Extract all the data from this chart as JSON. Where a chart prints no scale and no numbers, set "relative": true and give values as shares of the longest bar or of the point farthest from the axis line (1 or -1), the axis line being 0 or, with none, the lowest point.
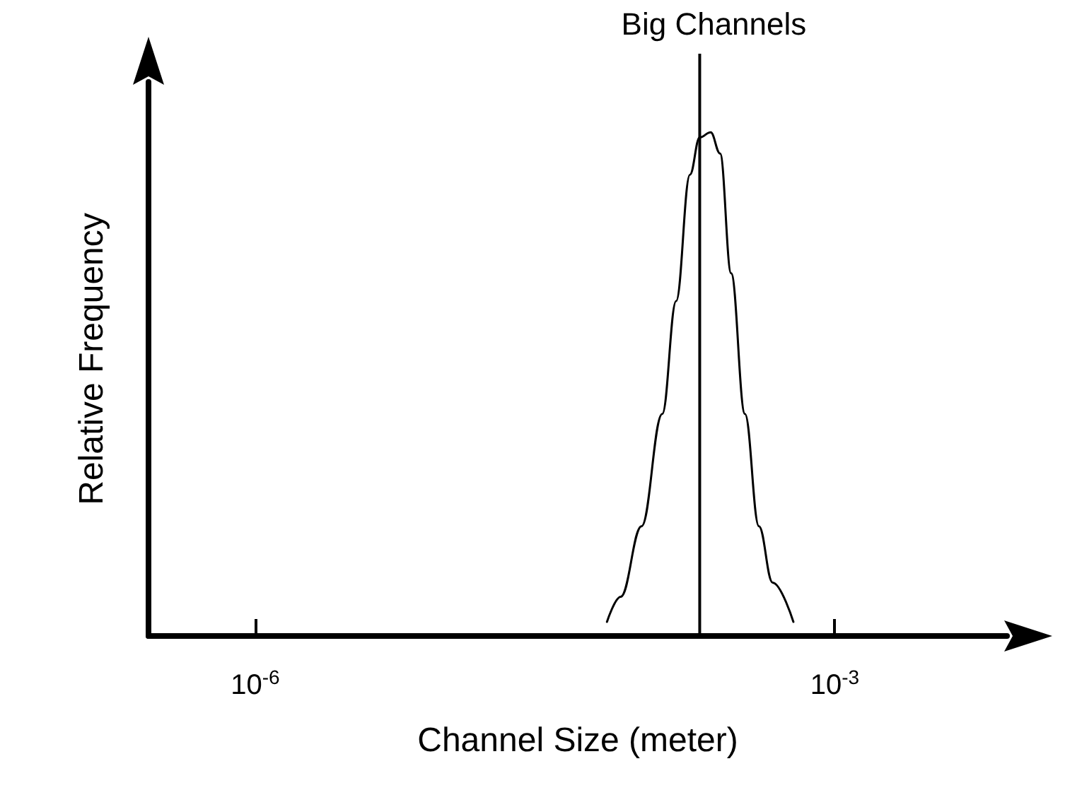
{
  "chart_data": {
    "type": "line",
    "relative": true,
    "xlabel": "Channel Size (meter)",
    "ylabel": "Relative Frequency",
    "log": "x",
    "xlim": [
      2.8e-07,
      0.0078
    ],
    "xticks": [
      {
        "value": 1e-06,
        "label": "10$^{-6}$"
      },
      {
        "value": 0.001,
        "label": "10$^{-3}$"
      }
    ],
    "series": [
      {
        "color": "#000000",
        "x": [
          6.62e-05,
          7.8e-05,
          0.0001,
          0.000128,
          0.000151,
          0.000178,
          0.0002,
          0.000228,
          0.000255,
          0.000291,
          0.000343,
          0.000405,
          0.000477,
          0.000611
        ],
        "values": [
          0.028,
          0.078,
          0.218,
          0.441,
          0.665,
          0.916,
          0.99,
          1,
          0.958,
          0.72,
          0.441,
          0.218,
          0.106,
          0.028
        ]
      }
    ],
    "ref_lines": [
      {
        "axis": "x",
        "value": 0.0002,
        "label": "Big Channels",
        "color": "#000000"
      }
    ],
    "grid": false,
    "marker": "none",
    "line_style": "solid"
  }
}
